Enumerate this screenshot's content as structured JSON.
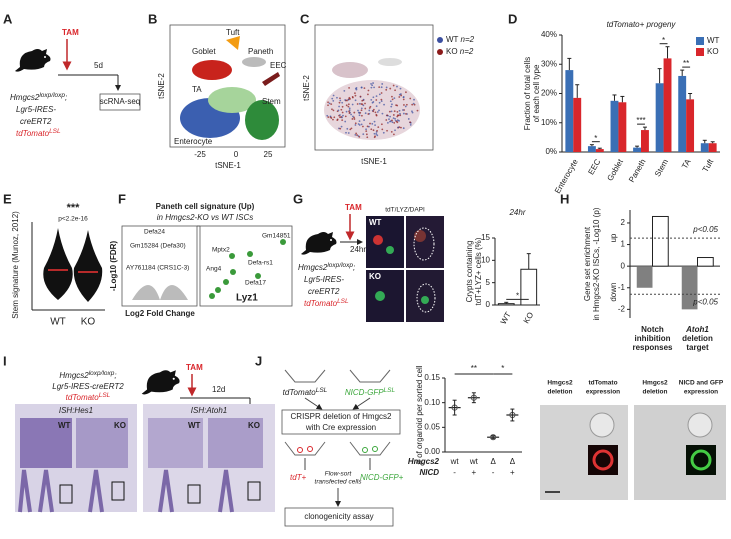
{
  "panel_labels": [
    "A",
    "B",
    "C",
    "D",
    "E",
    "F",
    "G",
    "H",
    "I",
    "J"
  ],
  "a": {
    "tam": "TAM",
    "duration": "5d",
    "assay": "scRNA-seq",
    "gene": "Hmgcs2",
    "gene_sup": "loxp/loxp",
    "sep": ";",
    "line2": "Lgr5-IRES-",
    "line3": "creERT2",
    "reporter": "tdTomato",
    "reporter_sup": "LSL"
  },
  "b": {
    "clusters": [
      "Tuft",
      "Goblet",
      "Paneth",
      "EEC",
      "TA",
      "Stem",
      "Enterocyte"
    ],
    "xticks": [
      "-25",
      "0",
      "25"
    ],
    "xlabel": "tSNE-1",
    "ylabel": "tSNE-2"
  },
  "c": {
    "legend": [
      {
        "name": "WT",
        "n": "n=2"
      },
      {
        "name": "KO",
        "n": "n=2"
      }
    ],
    "xlabel": "tSNE-1",
    "ylabel": "tSNE-2"
  },
  "e": {
    "significance": "***",
    "pvalue": "p<2.2e-16",
    "ylabel": "Stem signature (Munoz, 2012)",
    "categories": [
      "WT",
      "KO"
    ]
  },
  "f": {
    "title": "Paneth cell signature (Up)",
    "subtitle": "in Hmgcs2-KO vs WT ISCs",
    "ylabel": "-Log10 (FDR)",
    "xlabel": "Log2 Fold Change",
    "genes_left": [
      "Defa24",
      "Gm15284 (Defa30)",
      "AY761184 (CRS1C-3)"
    ],
    "genes_right": [
      "Gm14851",
      "Mptx2",
      "Defa-rs1",
      "Ang4",
      "Defa17",
      "Lyz1"
    ]
  },
  "g": {
    "tam": "TAM",
    "duration": "24hr",
    "gene": "Hmgcs2",
    "gene_sup": "loxp/loxp",
    "sep": ";",
    "line2": "Lgr5-IRES-",
    "line3": "creERT2",
    "reporter": "tdTomato",
    "reporter_sup": "LSL",
    "stain": "tdT/LYZ/DAPI",
    "rows": [
      "WT",
      "KO"
    ]
  },
  "i": {
    "gene": "Hmgcs2",
    "gene_sup": "loxp/loxp",
    "sep": ";",
    "line2": "Lgr5-IRES-creERT2",
    "reporter": "tdTomato",
    "reporter_sup": "LSL",
    "tam": "TAM",
    "duration": "12d",
    "probes": [
      "ISH:Hes1",
      "ISH:Atoh1"
    ],
    "genotypes": [
      "WT",
      "KO",
      "WT",
      "KO"
    ]
  },
  "j": {
    "reporters": [
      {
        "text": "tdTomato",
        "sup": "LSL"
      },
      {
        "text": "NICD-GFP",
        "sup": "LSL"
      }
    ],
    "step1": [
      "CRISPR deletion of Hmgcs2",
      "with Cre expression"
    ],
    "sorted": [
      "tdT+",
      "NICD-GFP+"
    ],
    "step2": [
      "Flow-sort",
      "transfected cells"
    ],
    "assay": "clonogenicity assay",
    "image_headers": [
      [
        "Hmgcs2",
        "deletion"
      ],
      [
        "tdTomato",
        "expression"
      ],
      [
        "Hmgcs2",
        "deletion"
      ],
      [
        "NICD and GFP",
        "expression"
      ]
    ]
  },
  "chart_data": [
    {
      "type": "bar",
      "title": "tdTomato+ progeny",
      "ylabel": [
        "Fraction of total cells",
        "of each cell type"
      ],
      "categories": [
        "Enterocyte",
        "EEC",
        "Goblet",
        "Paneth",
        "Stem",
        "TA",
        "Tuft"
      ],
      "series": [
        {
          "name": "WT",
          "color": "#3a6fb5",
          "values": [
            28,
            2,
            17.5,
            1.5,
            23.5,
            26,
            3
          ],
          "errors": [
            4,
            0.5,
            2,
            0.5,
            5,
            2,
            1
          ]
        },
        {
          "name": "KO",
          "color": "#d9262b",
          "values": [
            18.5,
            1,
            17,
            7.5,
            32,
            18,
            3
          ],
          "errors": [
            4.5,
            0.3,
            2,
            1,
            4,
            2,
            0.5
          ]
        }
      ],
      "ylim": [
        0,
        40
      ],
      "yticks": [
        {
          "value": 0,
          "label": "0%"
        },
        {
          "value": 10,
          "label": "10%"
        },
        {
          "value": 20,
          "label": "20%"
        },
        {
          "value": 30,
          "label": "30%"
        },
        {
          "value": 40,
          "label": "40%"
        }
      ],
      "significance": [
        null,
        "*",
        null,
        "***",
        "*",
        "**",
        null
      ],
      "legend": "upper right"
    },
    {
      "type": "bar",
      "title": "24hr",
      "ylabel": [
        "Crypts containing",
        "tdT+LYZ+ cells (%)"
      ],
      "categories": [
        "WT",
        "KO"
      ],
      "values": [
        0.3,
        8
      ],
      "errors": [
        0.3,
        3.5
      ],
      "color": "#ffffff",
      "ylim": [
        0,
        15
      ],
      "yticks": [
        0,
        5,
        10,
        15
      ],
      "significance": [
        "*"
      ]
    },
    {
      "type": "bar",
      "ylabel": [
        "Gene set enrichment",
        "in Hmgcs2-KO ISCs, -Log10 (p)"
      ],
      "direction_labels": [
        "up",
        "down"
      ],
      "categories": [
        [
          "Notch",
          "inhibition",
          "responses"
        ],
        [
          "Atoh1",
          "deletion",
          "target"
        ]
      ],
      "series": [
        {
          "color": "#808080",
          "values": [
            -1.0,
            -2.0
          ]
        },
        {
          "color": "#ffffff",
          "values": [
            2.3,
            0.4
          ]
        }
      ],
      "ylim": [
        -2.4,
        2.6
      ],
      "yticks": [
        -2,
        -1,
        0,
        1,
        2
      ],
      "thresholds": [
        1.3,
        -1.3
      ],
      "threshold_labels": [
        "p<0.05",
        "p<0.05"
      ]
    },
    {
      "type": "dot",
      "ylabel": "# of organoid per sorted cell",
      "categories": [
        "wt",
        "wt",
        "Δ",
        "Δ"
      ],
      "categories2": [
        "-",
        "+",
        "-",
        "+"
      ],
      "row_labels": [
        "Hmgcs2",
        "NICD"
      ],
      "values": [
        0.09,
        0.11,
        0.03,
        0.075
      ],
      "errors": [
        0.015,
        0.01,
        0.003,
        0.012
      ],
      "ylim": [
        0,
        0.15
      ],
      "yticks": [
        {
          "value": 0,
          "label": "0.00"
        },
        {
          "value": 0.05,
          "label": "0.05"
        },
        {
          "value": 0.1,
          "label": "0.10"
        },
        0.15
      ],
      "significance": [
        "**",
        "*"
      ]
    }
  ]
}
